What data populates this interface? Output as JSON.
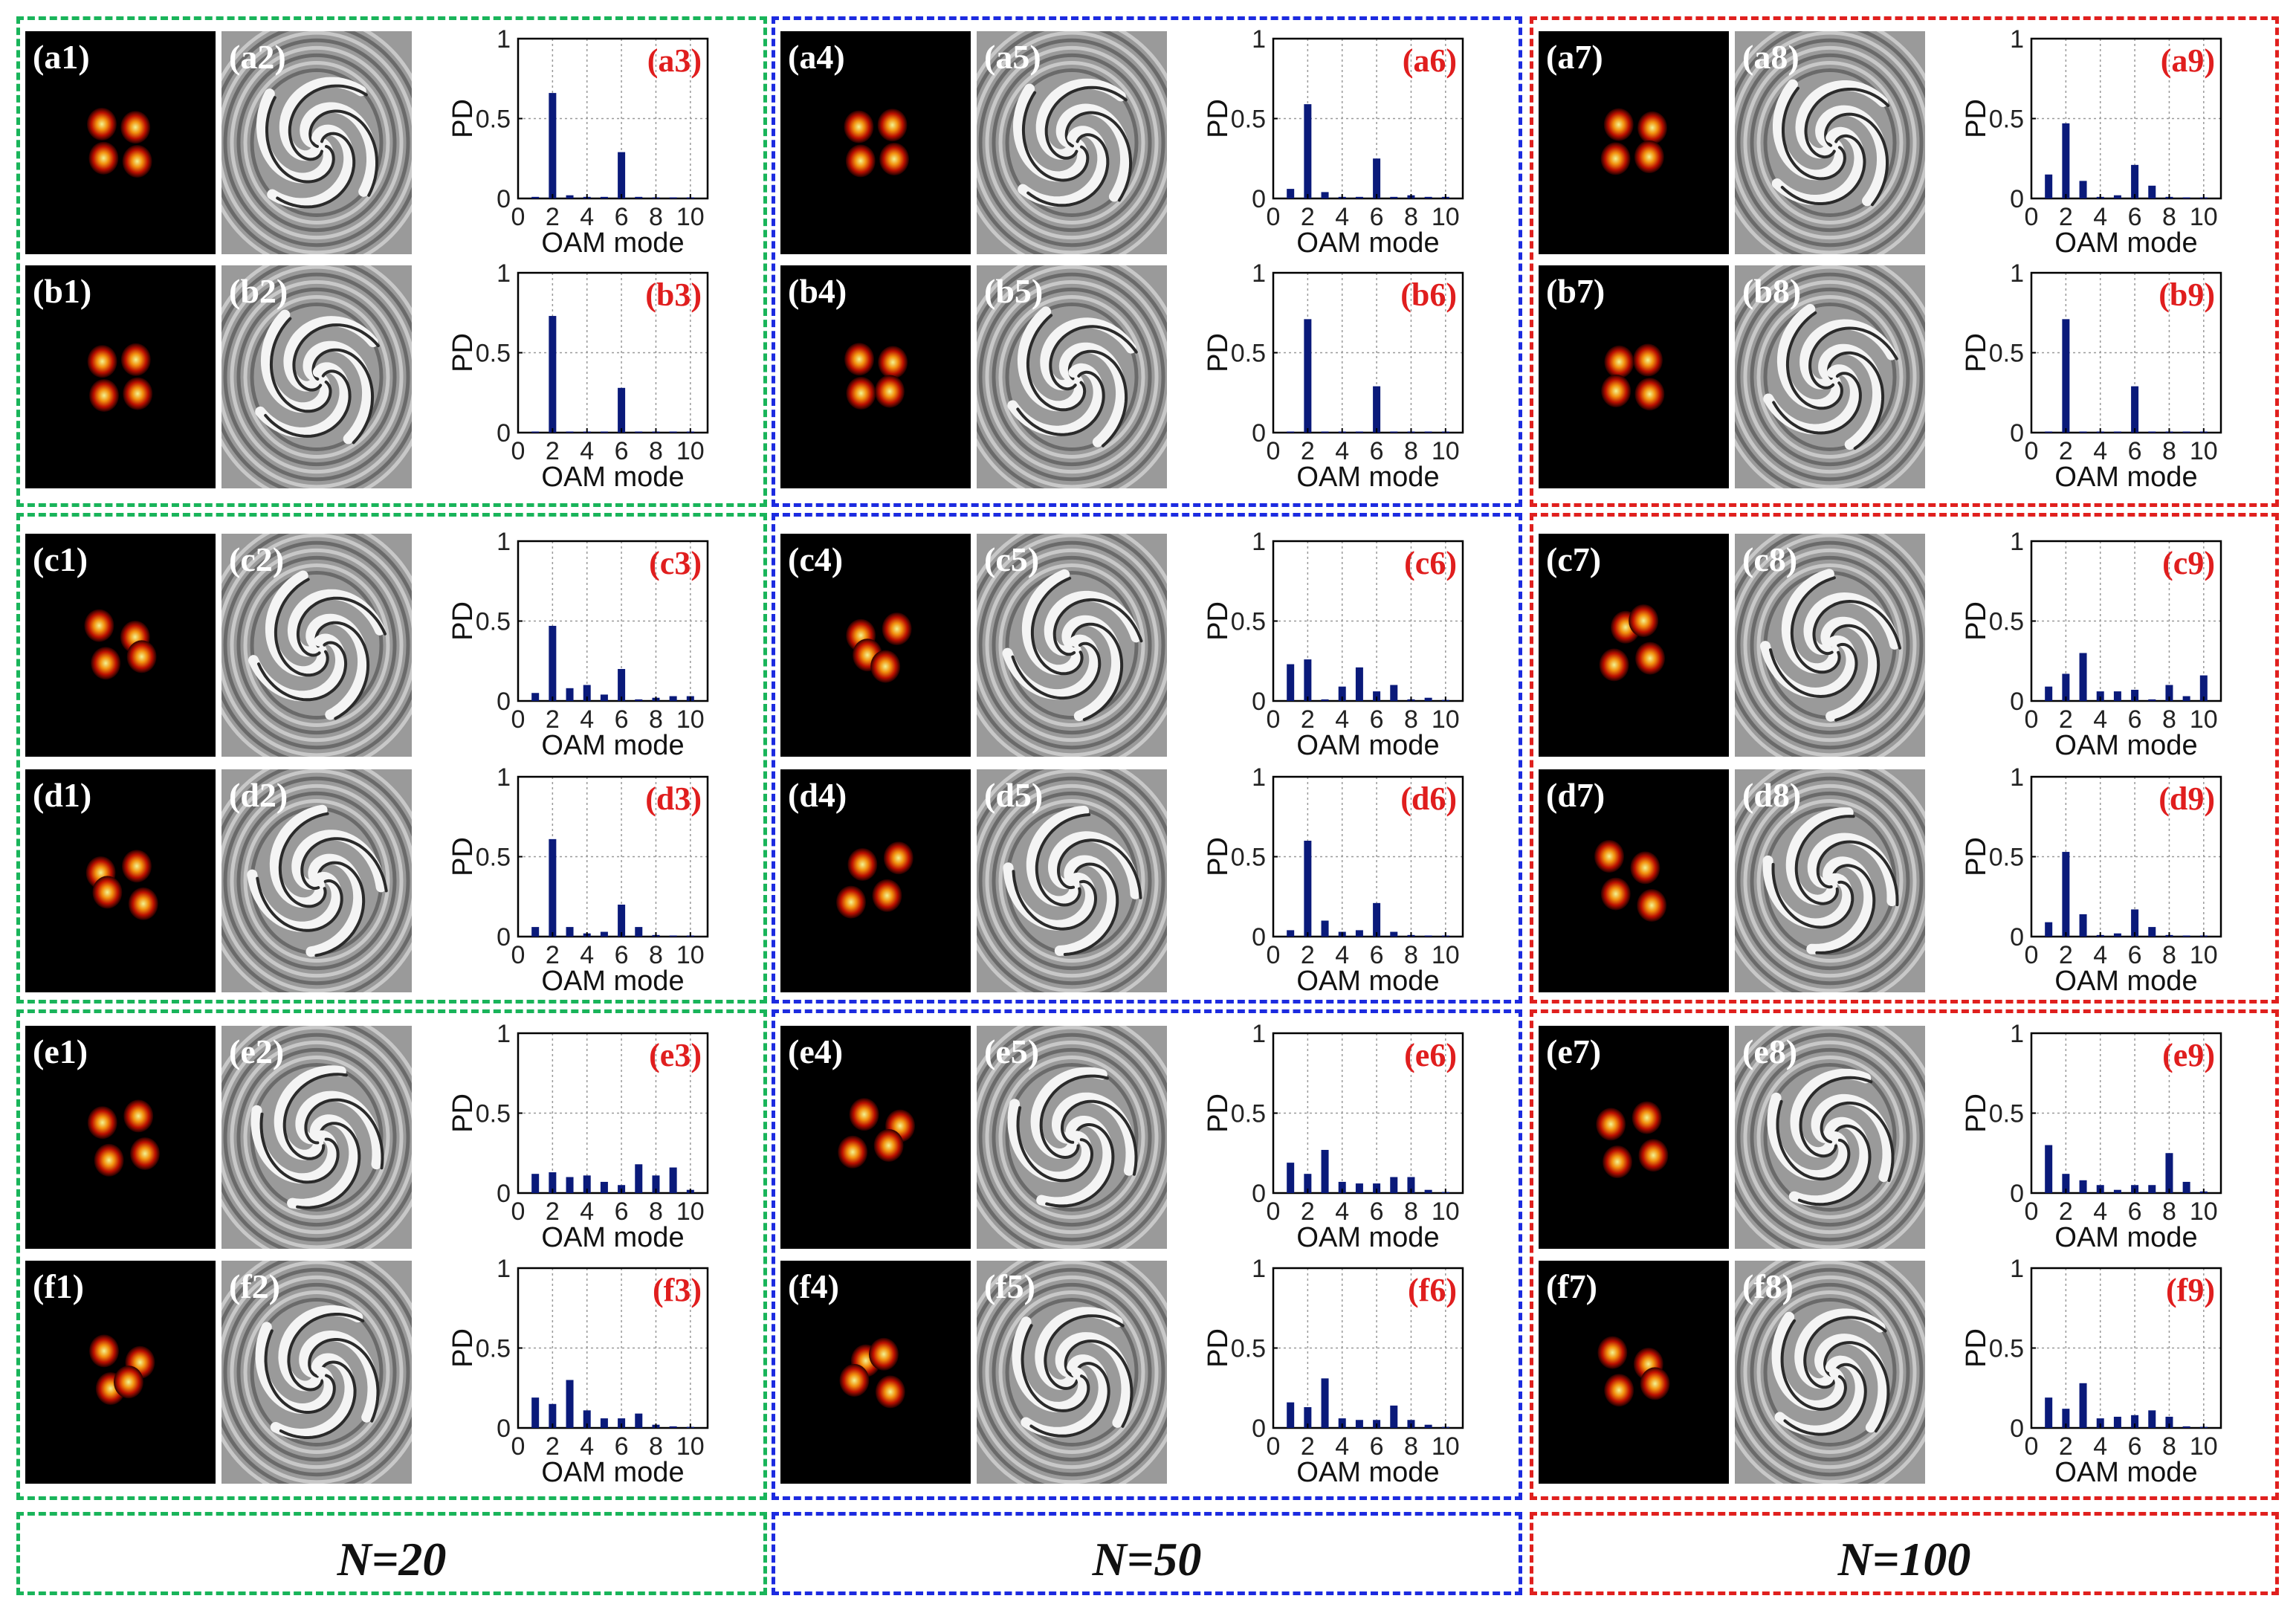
{
  "colors": {
    "n20": "#19b45a",
    "n50": "#1c2be0",
    "n100": "#e0201e",
    "bar": "#0a1a7a",
    "panel_label": "#e01e1e"
  },
  "groups": [
    {
      "label": "N=20"
    },
    {
      "label": "N=50"
    },
    {
      "label": "N=100"
    }
  ],
  "axis": {
    "ylabel": "PD",
    "xlabel": "OAM mode",
    "xticks": [
      "0",
      "2",
      "4",
      "6",
      "8",
      "10"
    ],
    "yticks": [
      "0",
      "0.5",
      "1"
    ]
  },
  "chart_data": [
    {
      "type": "bar",
      "id": "a3",
      "x": [
        1,
        2,
        3,
        4,
        5,
        6,
        7,
        8,
        9,
        10
      ],
      "values": [
        0.01,
        0.66,
        0.02,
        0.01,
        0.01,
        0.29,
        0.01,
        0.005,
        0.005,
        0.005
      ],
      "title": "(a3)",
      "xlabel": "OAM mode",
      "ylabel": "PD",
      "xlim": [
        0,
        11
      ],
      "ylim": [
        0,
        1
      ]
    },
    {
      "type": "bar",
      "id": "a6",
      "x": [
        1,
        2,
        3,
        4,
        5,
        6,
        7,
        8,
        9,
        10
      ],
      "values": [
        0.06,
        0.59,
        0.04,
        0.01,
        0.01,
        0.25,
        0.01,
        0.02,
        0.01,
        0.01
      ],
      "title": "(a6)",
      "xlabel": "OAM mode",
      "ylabel": "PD",
      "xlim": [
        0,
        11
      ],
      "ylim": [
        0,
        1
      ]
    },
    {
      "type": "bar",
      "id": "a9",
      "x": [
        1,
        2,
        3,
        4,
        5,
        6,
        7,
        8,
        9,
        10
      ],
      "values": [
        0.15,
        0.47,
        0.11,
        0.01,
        0.02,
        0.21,
        0.08,
        0.01,
        0.005,
        0.005
      ],
      "title": "(a9)",
      "xlabel": "OAM mode",
      "ylabel": "PD",
      "xlim": [
        0,
        11
      ],
      "ylim": [
        0,
        1
      ]
    },
    {
      "type": "bar",
      "id": "b3",
      "x": [
        1,
        2,
        3,
        4,
        5,
        6,
        7,
        8,
        9,
        10
      ],
      "values": [
        0.005,
        0.73,
        0.005,
        0.005,
        0.005,
        0.28,
        0.005,
        0.005,
        0.005,
        0.005
      ],
      "title": "(b3)",
      "xlabel": "OAM mode",
      "ylabel": "PD",
      "xlim": [
        0,
        11
      ],
      "ylim": [
        0,
        1
      ]
    },
    {
      "type": "bar",
      "id": "b6",
      "x": [
        1,
        2,
        3,
        4,
        5,
        6,
        7,
        8,
        9,
        10
      ],
      "values": [
        0.005,
        0.71,
        0.005,
        0.005,
        0.005,
        0.29,
        0.005,
        0.005,
        0.005,
        0.005
      ],
      "title": "(b6)",
      "xlabel": "OAM mode",
      "ylabel": "PD",
      "xlim": [
        0,
        11
      ],
      "ylim": [
        0,
        1
      ]
    },
    {
      "type": "bar",
      "id": "b9",
      "x": [
        1,
        2,
        3,
        4,
        5,
        6,
        7,
        8,
        9,
        10
      ],
      "values": [
        0,
        0.71,
        0,
        0,
        0,
        0.29,
        0,
        0,
        0,
        0
      ],
      "title": "(b9)",
      "xlabel": "OAM mode",
      "ylabel": "PD",
      "xlim": [
        0,
        11
      ],
      "ylim": [
        0,
        1
      ]
    },
    {
      "type": "bar",
      "id": "c3",
      "x": [
        1,
        2,
        3,
        4,
        5,
        6,
        7,
        8,
        9,
        10
      ],
      "values": [
        0.05,
        0.47,
        0.08,
        0.1,
        0.04,
        0.2,
        0.01,
        0.02,
        0.03,
        0.03
      ],
      "title": "(c3)",
      "xlabel": "OAM mode",
      "ylabel": "PD",
      "xlim": [
        0,
        11
      ],
      "ylim": [
        0,
        1
      ]
    },
    {
      "type": "bar",
      "id": "c6",
      "x": [
        1,
        2,
        3,
        4,
        5,
        6,
        7,
        8,
        9,
        10
      ],
      "values": [
        0.23,
        0.26,
        0.01,
        0.09,
        0.21,
        0.06,
        0.1,
        0.01,
        0.02,
        0.005
      ],
      "title": "(c6)",
      "xlabel": "OAM mode",
      "ylabel": "PD",
      "xlim": [
        0,
        11
      ],
      "ylim": [
        0,
        1
      ]
    },
    {
      "type": "bar",
      "id": "c9",
      "x": [
        1,
        2,
        3,
        4,
        5,
        6,
        7,
        8,
        9,
        10
      ],
      "values": [
        0.09,
        0.17,
        0.3,
        0.06,
        0.06,
        0.07,
        0.01,
        0.1,
        0.03,
        0.16
      ],
      "title": "(c9)",
      "xlabel": "OAM mode",
      "ylabel": "PD",
      "xlim": [
        0,
        11
      ],
      "ylim": [
        0,
        1
      ]
    },
    {
      "type": "bar",
      "id": "d3",
      "x": [
        1,
        2,
        3,
        4,
        5,
        6,
        7,
        8,
        9,
        10
      ],
      "values": [
        0.06,
        0.61,
        0.06,
        0.02,
        0.03,
        0.2,
        0.06,
        0.01,
        0.005,
        0.005
      ],
      "title": "(d3)",
      "xlabel": "OAM mode",
      "ylabel": "PD",
      "xlim": [
        0,
        11
      ],
      "ylim": [
        0,
        1
      ]
    },
    {
      "type": "bar",
      "id": "d6",
      "x": [
        1,
        2,
        3,
        4,
        5,
        6,
        7,
        8,
        9,
        10
      ],
      "values": [
        0.04,
        0.6,
        0.1,
        0.03,
        0.04,
        0.21,
        0.03,
        0.01,
        0.005,
        0.005
      ],
      "title": "(d6)",
      "xlabel": "OAM mode",
      "ylabel": "PD",
      "xlim": [
        0,
        11
      ],
      "ylim": [
        0,
        1
      ]
    },
    {
      "type": "bar",
      "id": "d9",
      "x": [
        1,
        2,
        3,
        4,
        5,
        6,
        7,
        8,
        9,
        10
      ],
      "values": [
        0.09,
        0.53,
        0.14,
        0.01,
        0.02,
        0.17,
        0.06,
        0.01,
        0.005,
        0.005
      ],
      "title": "(d9)",
      "xlabel": "OAM mode",
      "ylabel": "PD",
      "xlim": [
        0,
        11
      ],
      "ylim": [
        0,
        1
      ]
    },
    {
      "type": "bar",
      "id": "e3",
      "x": [
        1,
        2,
        3,
        4,
        5,
        6,
        7,
        8,
        9,
        10
      ],
      "values": [
        0.12,
        0.13,
        0.1,
        0.11,
        0.07,
        0.05,
        0.18,
        0.11,
        0.16,
        0.02
      ],
      "title": "(e3)",
      "xlabel": "OAM mode",
      "ylabel": "PD",
      "xlim": [
        0,
        11
      ],
      "ylim": [
        0,
        1
      ]
    },
    {
      "type": "bar",
      "id": "e6",
      "x": [
        1,
        2,
        3,
        4,
        5,
        6,
        7,
        8,
        9,
        10
      ],
      "values": [
        0.19,
        0.12,
        0.27,
        0.07,
        0.06,
        0.06,
        0.1,
        0.1,
        0.02,
        0.005
      ],
      "title": "(e6)",
      "xlabel": "OAM mode",
      "ylabel": "PD",
      "xlim": [
        0,
        11
      ],
      "ylim": [
        0,
        1
      ]
    },
    {
      "type": "bar",
      "id": "e9",
      "x": [
        1,
        2,
        3,
        4,
        5,
        6,
        7,
        8,
        9,
        10
      ],
      "values": [
        0.3,
        0.12,
        0.08,
        0.05,
        0.02,
        0.05,
        0.05,
        0.25,
        0.07,
        0.01
      ],
      "title": "(e9)",
      "xlabel": "OAM mode",
      "ylabel": "PD",
      "xlim": [
        0,
        11
      ],
      "ylim": [
        0,
        1
      ]
    },
    {
      "type": "bar",
      "id": "f3",
      "x": [
        1,
        2,
        3,
        4,
        5,
        6,
        7,
        8,
        9,
        10
      ],
      "values": [
        0.19,
        0.15,
        0.3,
        0.11,
        0.06,
        0.06,
        0.09,
        0.02,
        0.01,
        0.005
      ],
      "title": "(f3)",
      "xlabel": "OAM mode",
      "ylabel": "PD",
      "xlim": [
        0,
        11
      ],
      "ylim": [
        0,
        1
      ]
    },
    {
      "type": "bar",
      "id": "f6",
      "x": [
        1,
        2,
        3,
        4,
        5,
        6,
        7,
        8,
        9,
        10
      ],
      "values": [
        0.16,
        0.13,
        0.31,
        0.06,
        0.05,
        0.05,
        0.14,
        0.05,
        0.02,
        0.005
      ],
      "title": "(f6)",
      "xlabel": "OAM mode",
      "ylabel": "PD",
      "xlim": [
        0,
        11
      ],
      "ylim": [
        0,
        1
      ]
    },
    {
      "type": "bar",
      "id": "f9",
      "x": [
        1,
        2,
        3,
        4,
        5,
        6,
        7,
        8,
        9,
        10
      ],
      "values": [
        0.19,
        0.12,
        0.28,
        0.06,
        0.07,
        0.08,
        0.11,
        0.07,
        0.01,
        0.005
      ],
      "title": "(f9)",
      "xlabel": "OAM mode",
      "ylabel": "PD",
      "xlim": [
        0,
        11
      ],
      "ylim": [
        0,
        1
      ]
    }
  ],
  "panels": [
    {
      "row": "a",
      "labels": [
        "(a1)",
        "(a2)",
        "(a4)",
        "(a5)",
        "(a7)",
        "(a8)"
      ]
    },
    {
      "row": "b",
      "labels": [
        "(b1)",
        "(b2)",
        "(b4)",
        "(b5)",
        "(b7)",
        "(b8)"
      ]
    },
    {
      "row": "c",
      "labels": [
        "(c1)",
        "(c2)",
        "(c4)",
        "(c5)",
        "(c7)",
        "(c8)"
      ]
    },
    {
      "row": "d",
      "labels": [
        "(d1)",
        "(d2)",
        "(d4)",
        "(d5)",
        "(d7)",
        "(d8)"
      ]
    },
    {
      "row": "e",
      "labels": [
        "(e1)",
        "(e2)",
        "(e4)",
        "(e5)",
        "(e7)",
        "(e8)"
      ]
    },
    {
      "row": "f",
      "labels": [
        "(f1)",
        "(f2)",
        "(f4)",
        "(f5)",
        "(f7)",
        "(f8)"
      ]
    }
  ]
}
